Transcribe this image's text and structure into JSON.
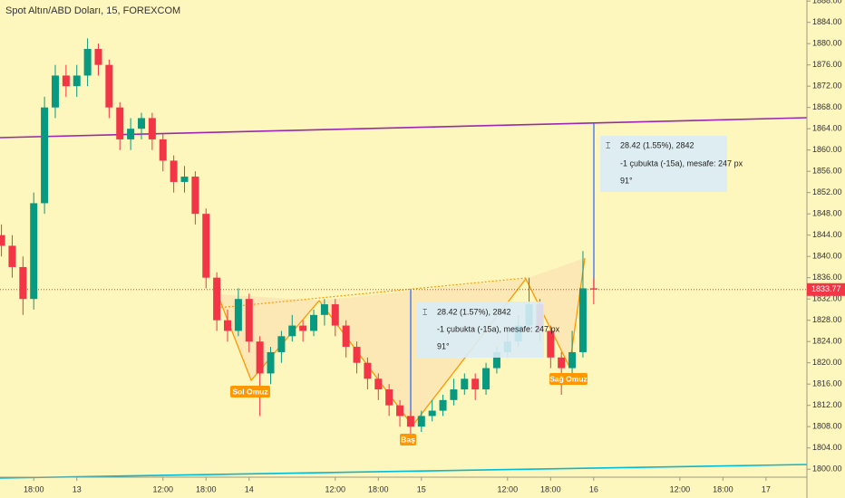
{
  "chart_data": {
    "type": "candlestick",
    "title": "Spot Altın/ABD Doları, 15, FOREXCOM",
    "x": [
      -4.5,
      -3,
      -1.5,
      0,
      1.5,
      3,
      4.5,
      6,
      7.5,
      9,
      10.5,
      12,
      13.5,
      15,
      16.5,
      18,
      19.5,
      21,
      22.5,
      24,
      25.5,
      27,
      28.5,
      30,
      31.5,
      33,
      34.5,
      36,
      37.5,
      39,
      40.5,
      42,
      43.5,
      45,
      46.5,
      48,
      49.5,
      51,
      52.5,
      54,
      55.5,
      57,
      58.5,
      60,
      61.5,
      63,
      64.5,
      66,
      67.5,
      69,
      70.5,
      72,
      73.5,
      75,
      76.5,
      78
    ],
    "open": [
      1844,
      1842,
      1838,
      1832,
      1850,
      1868,
      1874,
      1872,
      1874,
      1879,
      1876,
      1868,
      1862,
      1864,
      1866,
      1862,
      1858,
      1854,
      1855,
      1848,
      1836,
      1828,
      1826,
      1832,
      1824,
      1818,
      1822,
      1825,
      1827,
      1826,
      1829,
      1831,
      1827,
      1823,
      1820,
      1817,
      1815,
      1812,
      1810,
      1808,
      1810,
      1811,
      1813,
      1815,
      1817,
      1815,
      1819,
      1822,
      1824,
      1827,
      1831,
      1826,
      1821,
      1819,
      1822,
      1834
    ],
    "high": [
      1846,
      1844,
      1840,
      1852,
      1870,
      1876,
      1876,
      1876,
      1881,
      1880,
      1877,
      1869,
      1866,
      1867,
      1867,
      1863,
      1859,
      1857,
      1856,
      1849,
      1837,
      1830,
      1834,
      1833,
      1825,
      1823,
      1826,
      1829,
      1828,
      1830,
      1832,
      1832,
      1828,
      1824,
      1821,
      1818,
      1816,
      1813,
      1811,
      1811,
      1813,
      1814,
      1817,
      1818,
      1818,
      1820,
      1823,
      1826,
      1829,
      1836,
      1832,
      1827,
      1822,
      1826,
      1841,
      1836
    ],
    "low": [
      1840,
      1836,
      1829,
      1830,
      1848,
      1866,
      1870,
      1870,
      1872,
      1874,
      1866,
      1860,
      1860,
      1862,
      1860,
      1856,
      1852,
      1852,
      1846,
      1834,
      1826,
      1824,
      1825,
      1822,
      1810,
      1816,
      1820,
      1824,
      1824,
      1825,
      1827,
      1825,
      1821,
      1818,
      1815,
      1813,
      1810,
      1808,
      1806,
      1807,
      1809,
      1810,
      1812,
      1814,
      1813,
      1814,
      1818,
      1821,
      1823,
      1826,
      1824,
      1819,
      1814,
      1818,
      1821,
      1831
    ],
    "close": [
      1842,
      1838,
      1832,
      1850,
      1868,
      1874,
      1872,
      1874,
      1879,
      1876,
      1868,
      1862,
      1864,
      1866,
      1862,
      1858,
      1854,
      1855,
      1848,
      1836,
      1828,
      1826,
      1832,
      1824,
      1818,
      1822,
      1825,
      1827,
      1826,
      1829,
      1831,
      1827,
      1823,
      1820,
      1817,
      1815,
      1812,
      1810,
      1808,
      1810,
      1811,
      1813,
      1815,
      1817,
      1815,
      1819,
      1822,
      1824,
      1827,
      1831,
      1826,
      1821,
      1819,
      1822,
      1834,
      1833.77
    ],
    "up_color": "#089981",
    "down_color": "#f23645",
    "xlim": [
      -4.7,
      107.7
    ],
    "xticks": [
      {
        "value": 0,
        "label": "18:00"
      },
      {
        "value": 6,
        "label": "13"
      },
      {
        "value": 18,
        "label": "12:00"
      },
      {
        "value": 24,
        "label": "18:00"
      },
      {
        "value": 30,
        "label": "14"
      },
      {
        "value": 42,
        "label": "12:00"
      },
      {
        "value": 48,
        "label": "18:00"
      },
      {
        "value": 54,
        "label": "15"
      },
      {
        "value": 66,
        "label": "12:00"
      },
      {
        "value": 72,
        "label": "18:00"
      },
      {
        "value": 78,
        "label": "16"
      },
      {
        "value": 90,
        "label": "12:00"
      },
      {
        "value": 96,
        "label": "18:00"
      },
      {
        "value": 102,
        "label": "17"
      }
    ],
    "ylim": [
      1798.5,
      1888.2
    ],
    "yticks": [
      {
        "value": 1800,
        "label": "1800.00"
      },
      {
        "value": 1804,
        "label": "1804.00"
      },
      {
        "value": 1808,
        "label": "1808.00"
      },
      {
        "value": 1812,
        "label": "1812.00"
      },
      {
        "value": 1816,
        "label": "1816.00"
      },
      {
        "value": 1820,
        "label": "1820.00"
      },
      {
        "value": 1824,
        "label": "1824.00"
      },
      {
        "value": 1828,
        "label": "1828.00"
      },
      {
        "value": 1832,
        "label": "1832.00"
      },
      {
        "value": 1836,
        "label": "1836.00"
      },
      {
        "value": 1840,
        "label": "1840.00"
      },
      {
        "value": 1844,
        "label": "1844.00"
      },
      {
        "value": 1848,
        "label": "1848.00"
      },
      {
        "value": 1852,
        "label": "1852.00"
      },
      {
        "value": 1856,
        "label": "1856.00"
      },
      {
        "value": 1860,
        "label": "1860.00"
      },
      {
        "value": 1864,
        "label": "1864.00"
      },
      {
        "value": 1868,
        "label": "1868.00"
      },
      {
        "value": 1872,
        "label": "1872.00"
      },
      {
        "value": 1876,
        "label": "1876.00"
      },
      {
        "value": 1880,
        "label": "1880.00"
      },
      {
        "value": 1884,
        "label": "1884.00"
      },
      {
        "value": 1888,
        "label": "1888.00"
      }
    ],
    "annotations": {
      "pattern_labels": [
        "Sol Omuz",
        "Baş",
        "Sağ Omuz"
      ],
      "measure_1": [
        "28.42 (1.55%), 2842",
        "-1 çubukta (-15a), mesafe: 247 px",
        "91°"
      ],
      "measure_2": [
        "28.42 (1.57%), 2842",
        "-1 çubukta (-15a), mesafe: 247 px",
        "91°"
      ]
    }
  }
}
